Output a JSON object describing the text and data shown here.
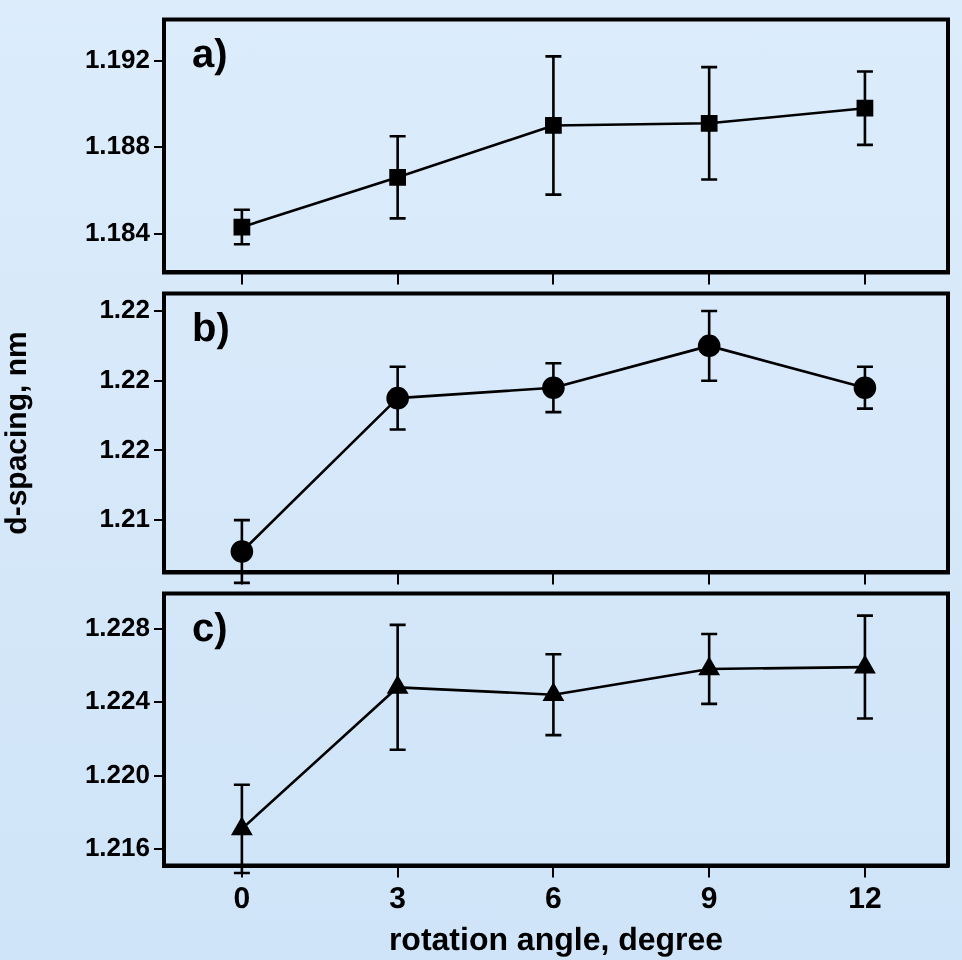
{
  "chart_data": [
    {
      "type": "line",
      "annotations": [
        "a)"
      ],
      "marker": "square",
      "tick_labels": "y",
      "x": [
        0,
        3,
        6,
        9,
        12
      ],
      "series": [
        {
          "color": "#000000",
          "values": [
            1.1843,
            1.1866,
            1.189,
            1.1891,
            1.1898
          ],
          "errors": [
            0.0008,
            0.0019,
            0.0032,
            0.0026,
            0.0017
          ]
        }
      ],
      "xlim": [
        -1.5,
        13.6
      ],
      "xticks": [
        0,
        3,
        6,
        9,
        12
      ],
      "ylim": [
        1.1822,
        1.1939
      ],
      "yticks": [
        1.184,
        1.188,
        1.192
      ]
    },
    {
      "type": "line",
      "annotations": [
        "b)"
      ],
      "marker": "circle",
      "tick_labels": "y",
      "ylabel": "d-spacing, nm",
      "x": [
        0,
        3,
        6,
        9,
        12
      ],
      "series": [
        {
          "color": "#000000",
          "values": [
            1.2136,
            1.218,
            1.2183,
            1.2195,
            1.2183
          ],
          "errors": [
            0.0009,
            0.0009,
            0.0007,
            0.001,
            0.0006
          ]
        }
      ],
      "xlim": [
        -1.5,
        13.6
      ],
      "xticks": [
        0,
        3,
        6,
        9,
        12
      ],
      "ylim": [
        1.213,
        1.221
      ],
      "yticks": [
        {
          "value": 1.2145,
          "label": "1.21"
        },
        {
          "value": 1.2165,
          "label": "1.22"
        },
        {
          "value": 1.2185,
          "label": "1.22"
        },
        {
          "value": 1.2205,
          "label": "1.22"
        }
      ]
    },
    {
      "type": "line",
      "annotations": [
        "c)"
      ],
      "marker": "triangle",
      "xlabel": "rotation angle, degree",
      "x": [
        0,
        3,
        6,
        9,
        12
      ],
      "series": [
        {
          "color": "#000000",
          "values": [
            1.2171,
            1.2248,
            1.2244,
            1.2258,
            1.2259
          ],
          "errors": [
            0.0024,
            0.0034,
            0.0022,
            0.0019,
            0.0028
          ]
        }
      ],
      "xlim": [
        -1.5,
        13.6
      ],
      "xticks": [
        0,
        3,
        6,
        9,
        12
      ],
      "ylim": [
        1.2151,
        1.2299
      ],
      "yticks": [
        1.216,
        {
          "value": 1.22,
          "label": "1.220"
        },
        1.224,
        1.228
      ]
    }
  ]
}
